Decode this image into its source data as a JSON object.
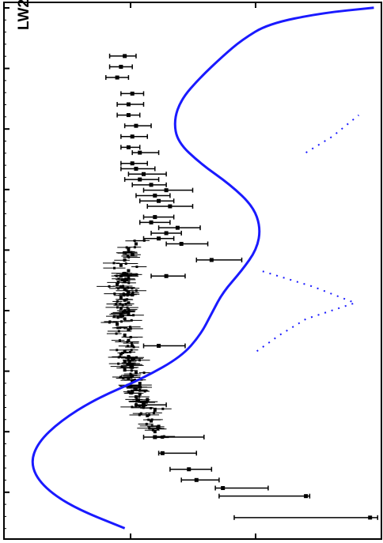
{
  "panel_label": "LW2",
  "colors": {
    "model": "#1a1aff",
    "data": "#000000",
    "frame": "#000000"
  },
  "chart_data": {
    "type": "line",
    "title": "",
    "xlabel": "",
    "ylabel": "",
    "orientation": "rotated-90-ccw",
    "xlim": [
      0,
      1
    ],
    "ylim": [
      0,
      1
    ],
    "grid": false,
    "legend": "none",
    "series": [
      {
        "kind": "line",
        "x": [
          0.02,
          0.06,
          0.1,
          0.14,
          0.18,
          0.22,
          0.26,
          0.3,
          0.34,
          0.38,
          0.42,
          0.46,
          0.5,
          0.54,
          0.58,
          0.62,
          0.66,
          0.7,
          0.74,
          0.78,
          0.82,
          0.86,
          0.9,
          0.93,
          0.96,
          0.98,
          0.99
        ],
        "y": [
          0.32,
          0.18,
          0.1,
          0.07,
          0.09,
          0.15,
          0.24,
          0.37,
          0.47,
          0.52,
          0.55,
          0.58,
          0.63,
          0.67,
          0.68,
          0.66,
          0.6,
          0.52,
          0.46,
          0.45,
          0.47,
          0.52,
          0.58,
          0.63,
          0.7,
          0.84,
          0.98
        ]
      },
      {
        "kind": "dotted",
        "x": [
          0.35,
          0.38,
          0.41,
          0.44,
          0.47,
          0.5
        ],
        "y": [
          0.67,
          0.73,
          0.8,
          0.93,
          0.82,
          0.68
        ]
      },
      {
        "kind": "dotted",
        "x": [
          0.72,
          0.75,
          0.79
        ],
        "y": [
          0.8,
          0.87,
          0.94
        ]
      },
      {
        "kind": "errorbar",
        "points": [
          {
            "x": 0.04,
            "y": 0.97,
            "lo": 0.61,
            "hi": 0.99
          },
          {
            "x": 0.08,
            "y": 0.8,
            "lo": 0.57,
            "hi": 0.81
          },
          {
            "x": 0.095,
            "y": 0.58,
            "lo": 0.56,
            "hi": 0.7
          },
          {
            "x": 0.11,
            "y": 0.51,
            "lo": 0.47,
            "hi": 0.57
          },
          {
            "x": 0.13,
            "y": 0.49,
            "lo": 0.44,
            "hi": 0.55
          },
          {
            "x": 0.16,
            "y": 0.42,
            "lo": 0.41,
            "hi": 0.51
          },
          {
            "x": 0.19,
            "y": 0.4,
            "lo": 0.37,
            "hi": 0.53
          },
          {
            "x": 0.25,
            "y": 0.37,
            "lo": 0.35,
            "hi": 0.43
          },
          {
            "x": 0.36,
            "y": 0.41,
            "lo": 0.37,
            "hi": 0.48
          },
          {
            "x": 0.49,
            "y": 0.43,
            "lo": 0.39,
            "hi": 0.48
          },
          {
            "x": 0.52,
            "y": 0.55,
            "lo": 0.51,
            "hi": 0.63
          },
          {
            "x": 0.55,
            "y": 0.47,
            "lo": 0.43,
            "hi": 0.54
          },
          {
            "x": 0.56,
            "y": 0.41,
            "lo": 0.37,
            "hi": 0.45
          },
          {
            "x": 0.57,
            "y": 0.43,
            "lo": 0.39,
            "hi": 0.47
          },
          {
            "x": 0.58,
            "y": 0.46,
            "lo": 0.41,
            "hi": 0.52
          },
          {
            "x": 0.59,
            "y": 0.39,
            "lo": 0.36,
            "hi": 0.44
          },
          {
            "x": 0.6,
            "y": 0.4,
            "lo": 0.37,
            "hi": 0.45
          },
          {
            "x": 0.62,
            "y": 0.44,
            "lo": 0.38,
            "hi": 0.5
          },
          {
            "x": 0.63,
            "y": 0.41,
            "lo": 0.36,
            "hi": 0.45
          },
          {
            "x": 0.64,
            "y": 0.4,
            "lo": 0.35,
            "hi": 0.44
          },
          {
            "x": 0.65,
            "y": 0.43,
            "lo": 0.37,
            "hi": 0.5
          },
          {
            "x": 0.66,
            "y": 0.39,
            "lo": 0.34,
            "hi": 0.43
          },
          {
            "x": 0.67,
            "y": 0.36,
            "lo": 0.32,
            "hi": 0.41
          },
          {
            "x": 0.68,
            "y": 0.37,
            "lo": 0.33,
            "hi": 0.43
          },
          {
            "x": 0.69,
            "y": 0.35,
            "lo": 0.31,
            "hi": 0.4
          },
          {
            "x": 0.7,
            "y": 0.34,
            "lo": 0.31,
            "hi": 0.38
          },
          {
            "x": 0.72,
            "y": 0.36,
            "lo": 0.34,
            "hi": 0.41
          },
          {
            "x": 0.73,
            "y": 0.33,
            "lo": 0.31,
            "hi": 0.36
          },
          {
            "x": 0.75,
            "y": 0.34,
            "lo": 0.31,
            "hi": 0.38
          },
          {
            "x": 0.77,
            "y": 0.35,
            "lo": 0.32,
            "hi": 0.39
          },
          {
            "x": 0.79,
            "y": 0.33,
            "lo": 0.3,
            "hi": 0.36
          },
          {
            "x": 0.81,
            "y": 0.33,
            "lo": 0.3,
            "hi": 0.37
          },
          {
            "x": 0.83,
            "y": 0.34,
            "lo": 0.31,
            "hi": 0.37
          },
          {
            "x": 0.86,
            "y": 0.3,
            "lo": 0.27,
            "hi": 0.33
          },
          {
            "x": 0.88,
            "y": 0.31,
            "lo": 0.28,
            "hi": 0.34
          },
          {
            "x": 0.9,
            "y": 0.32,
            "lo": 0.28,
            "hi": 0.35
          }
        ]
      },
      {
        "kind": "scatter",
        "x": [
          0.19,
          0.2,
          0.21,
          0.22,
          0.23,
          0.24,
          0.25,
          0.255,
          0.26,
          0.265,
          0.27,
          0.275,
          0.28,
          0.285,
          0.29,
          0.295,
          0.3,
          0.31,
          0.315,
          0.32,
          0.325,
          0.33,
          0.335,
          0.34,
          0.345,
          0.35,
          0.36,
          0.37,
          0.38,
          0.39,
          0.4,
          0.41,
          0.415,
          0.42,
          0.425,
          0.43,
          0.44,
          0.445,
          0.45,
          0.455,
          0.46,
          0.465,
          0.47,
          0.475,
          0.48,
          0.485,
          0.49,
          0.495,
          0.5,
          0.51,
          0.52,
          0.53,
          0.54,
          0.55
        ],
        "y": [
          0.42,
          0.4,
          0.41,
          0.39,
          0.38,
          0.4,
          0.35,
          0.37,
          0.38,
          0.35,
          0.36,
          0.34,
          0.35,
          0.33,
          0.36,
          0.34,
          0.33,
          0.35,
          0.32,
          0.34,
          0.33,
          0.32,
          0.34,
          0.33,
          0.31,
          0.32,
          0.34,
          0.33,
          0.32,
          0.33,
          0.3,
          0.32,
          0.31,
          0.33,
          0.32,
          0.31,
          0.33,
          0.32,
          0.31,
          0.34,
          0.33,
          0.32,
          0.31,
          0.3,
          0.32,
          0.33,
          0.31,
          0.32,
          0.33,
          0.31,
          0.32,
          0.34,
          0.33,
          0.35
        ]
      }
    ]
  }
}
